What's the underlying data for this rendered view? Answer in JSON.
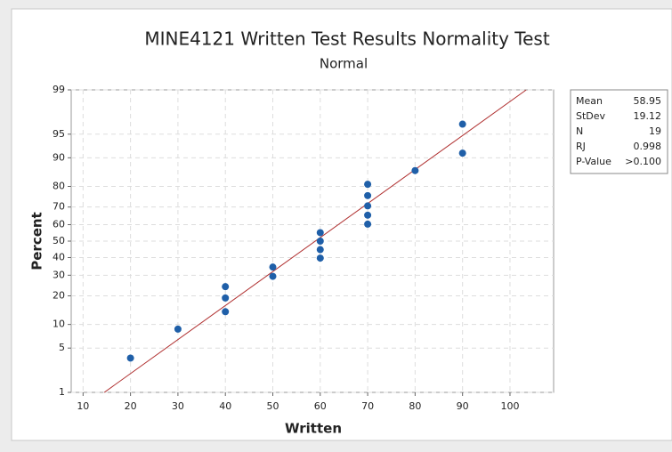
{
  "chart_data": {
    "type": "scatter",
    "title": "MINE4121 Written Test Results Normality Test",
    "subtitle": "Normal",
    "x_label": "Written",
    "y_label": "Percent",
    "x": [
      20,
      30,
      40,
      40,
      40,
      50,
      50,
      60,
      60,
      60,
      60,
      70,
      70,
      70,
      70,
      70,
      80,
      90,
      90
    ],
    "values": [
      3.6,
      8.8,
      13.9,
      19.1,
      24.2,
      29.4,
      34.5,
      39.7,
      44.8,
      50,
      55.2,
      60.3,
      65.5,
      70.6,
      75.8,
      80.9,
      86.1,
      91.2,
      96.4
    ],
    "color": "#1f5fa8",
    "fit_color": "#b03030",
    "yscale": "normal-probability",
    "xlim": [
      7.5,
      109.2
    ],
    "ylim": [
      1,
      99
    ],
    "xticks": [
      10,
      20,
      30,
      40,
      50,
      60,
      70,
      80,
      90,
      100
    ],
    "yticks": [
      1,
      5,
      10,
      20,
      30,
      40,
      50,
      60,
      70,
      80,
      90,
      95,
      99
    ],
    "grid": true,
    "stats": [
      {
        "label": "Mean",
        "value": 58.95
      },
      {
        "label": "StDev",
        "value": 19.12
      },
      {
        "label": "N",
        "value": 19
      },
      {
        "label": "RJ",
        "value": 0.998
      },
      {
        "label": "P-Value",
        "value": ">0.100"
      }
    ]
  }
}
